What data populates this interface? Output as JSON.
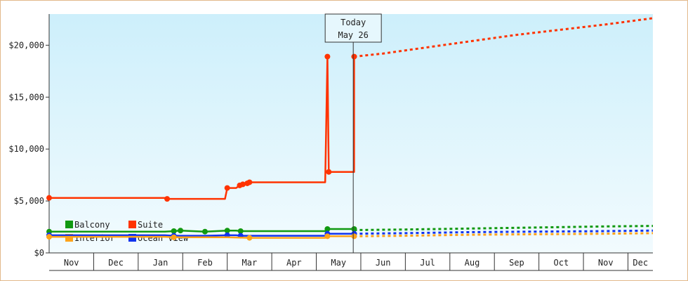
{
  "chart_data": {
    "type": "line",
    "title": "",
    "xlabel": "",
    "ylabel": "",
    "ylim": [
      0,
      23000
    ],
    "y_ticks": [
      {
        "value": 0,
        "label": "$0"
      },
      {
        "value": 5000,
        "label": "$5,000"
      },
      {
        "value": 10000,
        "label": "$10,000"
      },
      {
        "value": 15000,
        "label": "$15,000"
      },
      {
        "value": 20000,
        "label": "$20,000"
      }
    ],
    "x_months": [
      "Nov",
      "Dec",
      "Jan",
      "Feb",
      "Mar",
      "Apr",
      "May",
      "Jun",
      "Jul",
      "Aug",
      "Sep",
      "Oct",
      "Nov",
      "Dec"
    ],
    "x_range_months": [
      0,
      13.56
    ],
    "today": {
      "line1": "Today",
      "line2": "May 26",
      "x": 6.83
    },
    "background_gradient": [
      "#cdeffb",
      "#f2fbfe"
    ],
    "legend": {
      "placement": "bottom-left",
      "entries": [
        "Balcony",
        "Suite",
        "Interior",
        "Ocean View"
      ]
    },
    "series": [
      {
        "name": "Suite",
        "color": "#ff3300",
        "points": [
          [
            0.0,
            5300
          ],
          [
            2.6,
            5300
          ],
          [
            2.65,
            5200
          ],
          [
            3.95,
            5200
          ],
          [
            4.0,
            6250
          ],
          [
            4.2,
            6250
          ],
          [
            4.28,
            6500
          ],
          [
            4.35,
            6600
          ],
          [
            4.45,
            6700
          ],
          [
            4.5,
            6800
          ],
          [
            6.2,
            6800
          ],
          [
            6.25,
            18900
          ],
          [
            6.28,
            7800
          ],
          [
            6.85,
            7800
          ],
          [
            6.85,
            18900
          ]
        ],
        "forecast": [
          [
            6.85,
            18900
          ],
          [
            7.5,
            19200
          ],
          [
            8.5,
            19800
          ],
          [
            9.5,
            20400
          ],
          [
            10.5,
            21000
          ],
          [
            11.5,
            21500
          ],
          [
            12.5,
            22000
          ],
          [
            13.56,
            22600
          ]
        ]
      },
      {
        "name": "Balcony",
        "color": "#119911",
        "points": [
          [
            0.0,
            2050
          ],
          [
            2.6,
            2050
          ],
          [
            2.8,
            2100
          ],
          [
            2.95,
            2150
          ],
          [
            3.5,
            2050
          ],
          [
            4.0,
            2150
          ],
          [
            4.2,
            2150
          ],
          [
            4.3,
            2100
          ],
          [
            4.5,
            2100
          ],
          [
            6.2,
            2100
          ],
          [
            6.25,
            2300
          ],
          [
            6.85,
            2300
          ]
        ],
        "forecast": [
          [
            6.85,
            2200
          ],
          [
            8.0,
            2250
          ],
          [
            9.5,
            2350
          ],
          [
            11.0,
            2450
          ],
          [
            12.5,
            2550
          ],
          [
            13.56,
            2600
          ]
        ]
      },
      {
        "name": "Ocean View",
        "color": "#1133ee",
        "points": [
          [
            0.0,
            1700
          ],
          [
            2.6,
            1700
          ],
          [
            2.8,
            1650
          ],
          [
            3.5,
            1650
          ],
          [
            4.0,
            1700
          ],
          [
            4.2,
            1700
          ],
          [
            4.3,
            1650
          ],
          [
            4.5,
            1650
          ],
          [
            6.2,
            1650
          ],
          [
            6.25,
            1850
          ],
          [
            6.85,
            1850
          ]
        ],
        "forecast": [
          [
            6.85,
            1850
          ],
          [
            8.0,
            1900
          ],
          [
            9.5,
            2000
          ],
          [
            11.0,
            2050
          ],
          [
            12.5,
            2100
          ],
          [
            13.56,
            2150
          ]
        ]
      },
      {
        "name": "Interior",
        "color": "#ffa31a",
        "points": [
          [
            0.0,
            1550
          ],
          [
            2.6,
            1550
          ],
          [
            2.8,
            1500
          ],
          [
            3.5,
            1500
          ],
          [
            4.0,
            1500
          ],
          [
            4.5,
            1450
          ],
          [
            6.2,
            1450
          ],
          [
            6.25,
            1600
          ],
          [
            6.85,
            1600
          ]
        ],
        "forecast": [
          [
            6.85,
            1600
          ],
          [
            8.0,
            1650
          ],
          [
            9.5,
            1750
          ],
          [
            11.0,
            1800
          ],
          [
            12.5,
            1850
          ],
          [
            13.56,
            1900
          ]
        ]
      }
    ]
  }
}
